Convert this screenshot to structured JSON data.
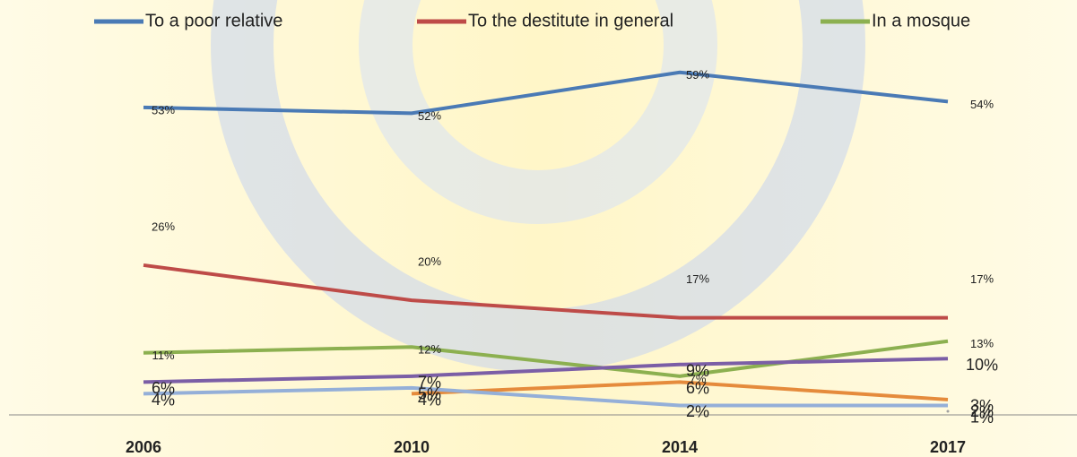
{
  "chart_data": {
    "type": "line",
    "categories": [
      "2006",
      "2010",
      "2014",
      "2017"
    ],
    "ylim": [
      0,
      70
    ],
    "series": [
      {
        "name": "To a poor relative",
        "color": "#4a7ab5",
        "values": [
          53,
          52,
          59,
          54
        ]
      },
      {
        "name": "To the destitute in general",
        "color": "#be4b48",
        "values": [
          26,
          20,
          17,
          17
        ]
      },
      {
        "name": "In a mosque",
        "color": "#8cb050",
        "values": [
          11,
          12,
          7,
          13
        ]
      },
      {
        "color": "#7b5ea6",
        "values": [
          6,
          7,
          9,
          10
        ]
      },
      {
        "color": "#e58b3c",
        "values": [
          null,
          4,
          6,
          3
        ]
      },
      {
        "color": "#94afd8",
        "values": [
          4,
          5,
          2,
          2
        ]
      },
      {
        "color": "#a0a0a0",
        "values": [
          null,
          null,
          null,
          1
        ]
      }
    ]
  }
}
